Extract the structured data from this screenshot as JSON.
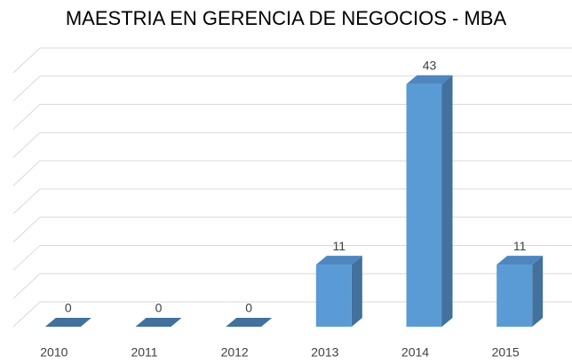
{
  "chart_data": {
    "type": "bar3d",
    "title": "MAESTRIA EN GERENCIA DE NEGOCIOS - MBA",
    "categories": [
      "2010",
      "2011",
      "2012",
      "2013",
      "2014",
      "2015"
    ],
    "values": [
      0,
      0,
      0,
      11,
      43,
      11
    ],
    "color": "#5b9bd5",
    "ylim": [
      0,
      45
    ],
    "yticks": [
      0,
      5,
      10,
      15,
      20,
      25,
      30,
      35,
      40,
      45
    ],
    "grid": true
  }
}
